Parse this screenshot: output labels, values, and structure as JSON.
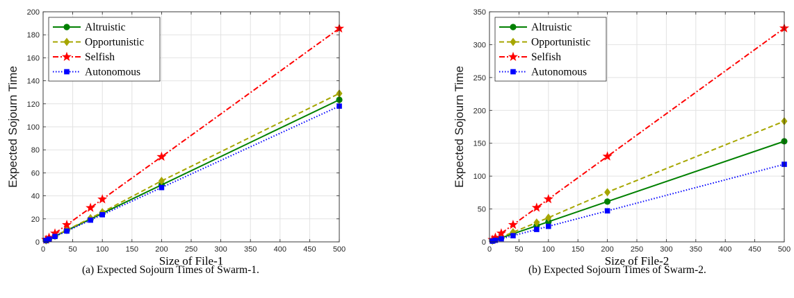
{
  "chart_data": [
    {
      "type": "line",
      "caption": "(a) Expected Sojourn Times of Swarm-1.",
      "xlabel": "Size of File-1",
      "ylabel": "Expected Sojourn Time",
      "xlim": [
        0,
        500
      ],
      "ylim": [
        0,
        200
      ],
      "xticks": [
        0,
        50,
        100,
        150,
        200,
        250,
        300,
        350,
        400,
        450,
        500
      ],
      "yticks": [
        0,
        20,
        40,
        60,
        80,
        100,
        120,
        140,
        160,
        180,
        200
      ],
      "grid": true,
      "legend_position": "top-left",
      "x": [
        5,
        10,
        20,
        40,
        80,
        100,
        200,
        500
      ],
      "series": [
        {
          "name": "Altruistic",
          "color": "#008000",
          "dash": "solid",
          "marker": "circle",
          "values": [
            1.2,
            2.5,
            4.9,
            9.9,
            19.8,
            24.8,
            49.5,
            123.5
          ]
        },
        {
          "name": "Opportunistic",
          "color": "#a6a600",
          "dash": "dashed",
          "marker": "diamond",
          "values": [
            1.3,
            2.6,
            5.2,
            10.3,
            20.6,
            25.8,
            53.0,
            129.0
          ]
        },
        {
          "name": "Selfish",
          "color": "#ff0000",
          "dash": "dashdot",
          "marker": "star",
          "values": [
            1.9,
            3.7,
            7.4,
            14.8,
            29.6,
            37.0,
            74.0,
            185.5
          ]
        },
        {
          "name": "Autonomous",
          "color": "#0000ff",
          "dash": "dotted",
          "marker": "square",
          "values": [
            1.2,
            2.4,
            4.7,
            9.4,
            18.9,
            23.6,
            47.2,
            118.0
          ]
        }
      ]
    },
    {
      "type": "line",
      "caption": "(b) Expected Sojourn Times of Swarm-2.",
      "xlabel": "Size of File-2",
      "ylabel": "Expected Sojourn Time",
      "xlim": [
        0,
        500
      ],
      "ylim": [
        0,
        350
      ],
      "xticks": [
        0,
        50,
        100,
        150,
        200,
        250,
        300,
        350,
        400,
        450,
        500
      ],
      "yticks": [
        0,
        50,
        100,
        150,
        200,
        250,
        300,
        350
      ],
      "grid": true,
      "legend_position": "top-left",
      "x": [
        5,
        10,
        20,
        40,
        80,
        100,
        200,
        500
      ],
      "series": [
        {
          "name": "Altruistic",
          "color": "#008000",
          "dash": "solid",
          "marker": "circle",
          "values": [
            1.5,
            3.1,
            6.1,
            12.3,
            24.5,
            30.6,
            61.3,
            153.0
          ]
        },
        {
          "name": "Opportunistic",
          "color": "#a6a600",
          "dash": "dashed",
          "marker": "diamond",
          "values": [
            1.8,
            3.7,
            7.4,
            14.7,
            29.4,
            36.8,
            75.5,
            183.5
          ]
        },
        {
          "name": "Selfish",
          "color": "#ff0000",
          "dash": "dashdot",
          "marker": "star",
          "values": [
            3.3,
            6.5,
            13.0,
            26.0,
            52.0,
            65.0,
            130.0,
            325.0
          ]
        },
        {
          "name": "Autonomous",
          "color": "#0000ff",
          "dash": "dotted",
          "marker": "square",
          "values": [
            1.2,
            2.4,
            4.7,
            9.4,
            18.9,
            23.6,
            47.2,
            118.0
          ]
        }
      ]
    }
  ]
}
